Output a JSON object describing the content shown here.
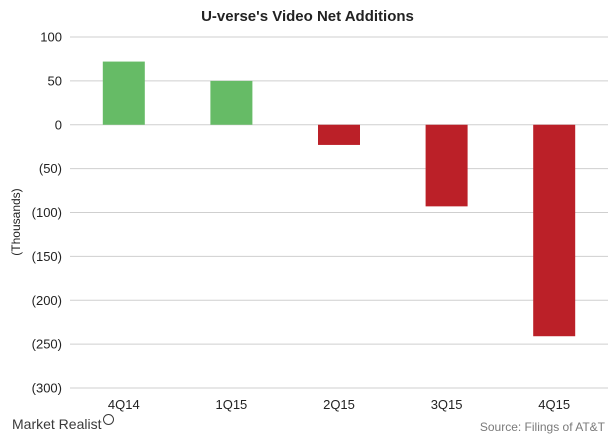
{
  "title": "U-verse's Video Net Additions",
  "source": "Source: Filings of AT&T",
  "logo_text": "Market Realist",
  "colors": {
    "positive": "#66bb66",
    "negative": "#bb2028",
    "grid": "#cfcfcf"
  },
  "chart_data": {
    "type": "bar",
    "categories": [
      "4Q14",
      "1Q15",
      "2Q15",
      "3Q15",
      "4Q15"
    ],
    "values": [
      72,
      50,
      -23,
      -93,
      -241
    ],
    "ylabel": "(Thousands)",
    "ylim": [
      -300,
      100
    ],
    "yticks": [
      100,
      50,
      0,
      -50,
      -100,
      -150,
      -200,
      -250,
      -300
    ],
    "ytick_labels": [
      "100",
      "50",
      "0",
      "(50)",
      "(100)",
      "(150)",
      "(200)",
      "(250)",
      "(300)"
    ],
    "grid": true
  }
}
